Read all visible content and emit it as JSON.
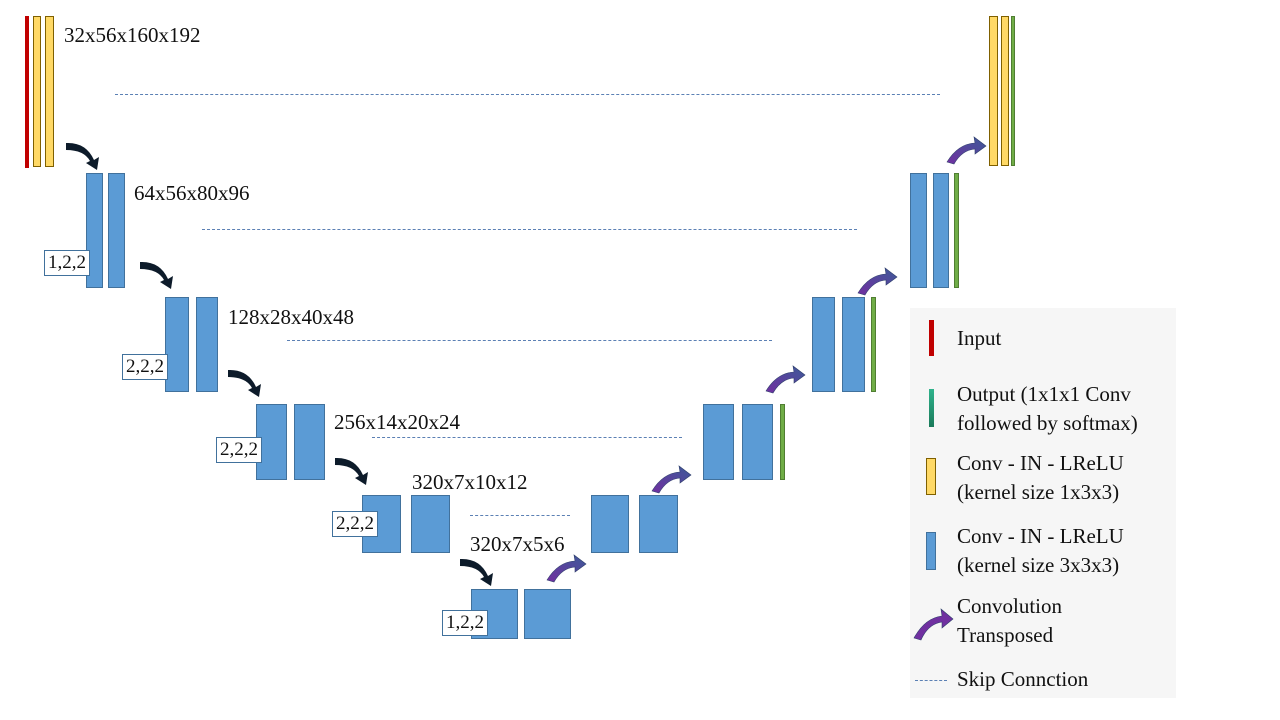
{
  "dimensions": {
    "enc1": "32x56x160x192",
    "enc2": "64x56x80x96",
    "enc3": "128x28x40x48",
    "enc4": "256x14x20x24",
    "enc5": "320x7x10x12",
    "bottleneck": "320x7x5x6"
  },
  "strides": {
    "enc2": "1,2,2",
    "enc3": "2,2,2",
    "enc4": "2,2,2",
    "enc5": "2,2,2",
    "bottleneck": "1,2,2"
  },
  "legend": {
    "input": "Input",
    "output_line1": "Output (1x1x1 Conv",
    "output_line2": "followed by softmax)",
    "conv133_line1": "Conv - IN - LReLU",
    "conv133_line2": "(kernel size 1x3x3)",
    "conv333_line1": "Conv - IN - LReLU",
    "conv333_line2": "(kernel size 3x3x3)",
    "convt_line1": "Convolution",
    "convt_line2": "Transposed",
    "skip": "Skip Connction"
  },
  "colors": {
    "input": "#c00000",
    "output": "#70ad47",
    "conv_1x3x3": "#ffd966",
    "conv_3x3x3": "#5b9bd5",
    "downsample_arrow": "#0d1b2a",
    "conv_transposed_arrow": "#7030a0",
    "skip_line": "#5b80b4"
  }
}
